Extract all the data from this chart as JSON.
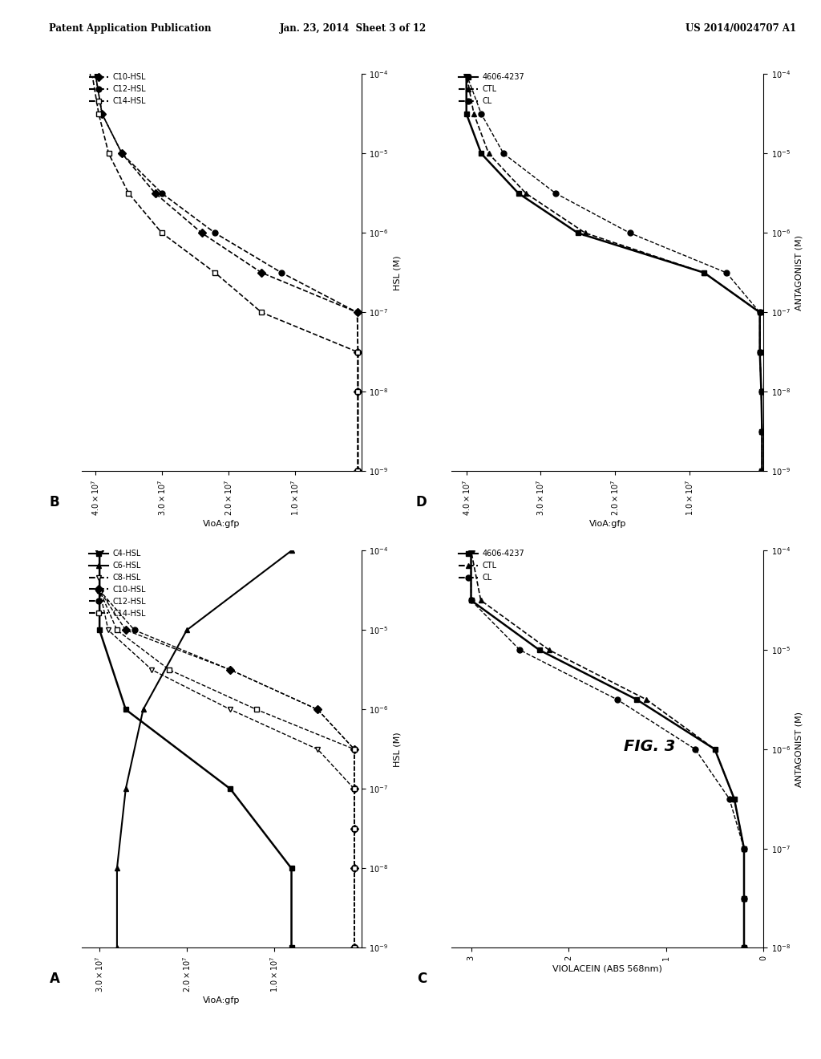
{
  "background": "#ffffff",
  "header_left": "Patent Application Publication",
  "header_center": "Jan. 23, 2014  Sheet 3 of 12",
  "header_right": "US 2014/0024707 A1",
  "fig_label": "FIG. 3",
  "panel_B": {
    "label": "B",
    "response_label": "VioA:gfp",
    "conc_label": "HSL (M)",
    "conc_lim": [
      -9,
      -4
    ],
    "response_lim": [
      0,
      42000000.0
    ],
    "response_ticks": [
      10000000.0,
      20000000.0,
      30000000.0,
      40000000.0
    ],
    "series": [
      {
        "label": "C10-HSL",
        "marker": "D",
        "filled": true,
        "linestyle": "--",
        "lw": 1.2,
        "x": [
          -9,
          -8,
          -7.5,
          -7,
          -6.5,
          -6,
          -5.5,
          -5,
          -4.5,
          -4
        ],
        "y": [
          500000.0,
          500000.0,
          500000.0,
          600000.0,
          15000000.0,
          24000000.0,
          31000000.0,
          36000000.0,
          39000000.0,
          40000000.0
        ]
      },
      {
        "label": "C12-HSL",
        "marker": "o",
        "filled": true,
        "linestyle": "--",
        "lw": 1.2,
        "x": [
          -9,
          -8,
          -7.5,
          -7,
          -6.5,
          -6,
          -5.5,
          -5,
          -4.5,
          -4
        ],
        "y": [
          500000.0,
          500000.0,
          500000.0,
          600000.0,
          12000000.0,
          22000000.0,
          30000000.0,
          36000000.0,
          39000000.0,
          40000000.0
        ]
      },
      {
        "label": "C14-HSL",
        "marker": "s",
        "filled": false,
        "linestyle": "--",
        "lw": 1.2,
        "x": [
          -9,
          -8,
          -7.5,
          -7,
          -6.5,
          -6,
          -5.5,
          -5,
          -4.5,
          -4
        ],
        "y": [
          500000.0,
          500000.0,
          500000.0,
          15000000.0,
          22000000.0,
          30000000.0,
          35000000.0,
          38000000.0,
          39500000.0,
          40500000.0
        ]
      }
    ],
    "legend": [
      {
        "label": "C10-HSL",
        "marker": "D",
        "filled": true,
        "linestyle": "--"
      },
      {
        "label": "C12-HSL",
        "marker": "o",
        "filled": true,
        "linestyle": "--"
      },
      {
        "label": "C14-HSL",
        "marker": "s",
        "filled": false,
        "linestyle": "--"
      }
    ]
  },
  "panel_A": {
    "label": "A",
    "response_label": "VioA:gfp",
    "conc_label": "HSL (M)",
    "conc_lim": [
      -9,
      -4
    ],
    "response_lim": [
      0,
      32000000.0
    ],
    "response_ticks": [
      10000000.0,
      20000000.0,
      30000000.0
    ],
    "series": [
      {
        "label": "C4-HSL",
        "marker": "s",
        "filled": true,
        "linestyle": "-",
        "lw": 1.8,
        "x": [
          -9,
          -8,
          -7,
          -6,
          -5,
          -4
        ],
        "y": [
          8000000.0,
          8000000.0,
          15000000.0,
          27000000.0,
          30000000.0,
          30000000.0
        ]
      },
      {
        "label": "C6-HSL",
        "marker": "^",
        "filled": true,
        "linestyle": "-",
        "lw": 1.5,
        "x": [
          -9,
          -8,
          -7,
          -6,
          -5,
          -4
        ],
        "y": [
          28000000.0,
          28000000.0,
          27000000.0,
          25000000.0,
          20000000.0,
          8000000.0
        ]
      },
      {
        "label": "C8-HSL",
        "marker": "v",
        "filled": false,
        "linestyle": "--",
        "lw": 1.0,
        "x": [
          -9,
          -8,
          -7.5,
          -7,
          -6.5,
          -6,
          -5.5,
          -5,
          -4.5,
          -4
        ],
        "y": [
          800000.0,
          800000.0,
          800000.0,
          800000.0,
          5000000.0,
          15000000.0,
          24000000.0,
          29000000.0,
          30000000.0,
          30000000.0
        ]
      },
      {
        "label": "C10-HSL",
        "marker": "D",
        "filled": true,
        "linestyle": "--",
        "lw": 1.0,
        "x": [
          -9,
          -8,
          -7.5,
          -7,
          -6.5,
          -6,
          -5.5,
          -5,
          -4.5,
          -4
        ],
        "y": [
          800000.0,
          800000.0,
          800000.0,
          800000.0,
          800000.0,
          5000000.0,
          15000000.0,
          27000000.0,
          30000000.0,
          30000000.0
        ]
      },
      {
        "label": "C12-HSL",
        "marker": "o",
        "filled": true,
        "linestyle": "--",
        "lw": 1.0,
        "x": [
          -9,
          -8,
          -7.5,
          -7,
          -6.5,
          -6,
          -5.5,
          -5,
          -4.5,
          -4
        ],
        "y": [
          800000.0,
          800000.0,
          800000.0,
          800000.0,
          800000.0,
          5000000.0,
          15000000.0,
          26000000.0,
          30000000.0,
          30000000.0
        ]
      },
      {
        "label": "C14-HSL",
        "marker": "s",
        "filled": false,
        "linestyle": "--",
        "lw": 1.0,
        "x": [
          -9,
          -8,
          -7.5,
          -7,
          -6.5,
          -6,
          -5.5,
          -5,
          -4.5,
          -4
        ],
        "y": [
          800000.0,
          800000.0,
          800000.0,
          800000.0,
          800000.0,
          12000000.0,
          22000000.0,
          28000000.0,
          30000000.0,
          30000000.0
        ]
      }
    ],
    "legend": [
      {
        "label": "C4-HSL",
        "marker": "s",
        "filled": true,
        "linestyle": "-"
      },
      {
        "label": "C6-HSL",
        "marker": "^",
        "filled": true,
        "linestyle": "-"
      },
      {
        "label": "C8-HSL",
        "marker": "v",
        "filled": false,
        "linestyle": "--"
      },
      {
        "label": "C10-HSL",
        "marker": "D",
        "filled": true,
        "linestyle": "--"
      },
      {
        "label": "C12-HSL",
        "marker": "o",
        "filled": true,
        "linestyle": "--"
      },
      {
        "label": "C14-HSL",
        "marker": "s",
        "filled": false,
        "linestyle": "--"
      }
    ]
  },
  "panel_D": {
    "label": "D",
    "response_label": "VioA:gfp",
    "conc_label": "ANTAGONIST (M)",
    "conc_lim": [
      -9,
      -4
    ],
    "response_lim": [
      0,
      42000000.0
    ],
    "response_ticks": [
      10000000.0,
      20000000.0,
      30000000.0,
      40000000.0
    ],
    "series": [
      {
        "label": "4606-4237",
        "marker": "s",
        "filled": true,
        "linestyle": "-",
        "lw": 1.8,
        "x": [
          -9,
          -8.5,
          -8,
          -7.5,
          -7,
          -6.5,
          -6,
          -5.5,
          -5,
          -4.5,
          -4
        ],
        "y": [
          200000.0,
          200000.0,
          300000.0,
          500000.0,
          500000.0,
          8000000.0,
          25000000.0,
          33000000.0,
          38000000.0,
          40000000.0,
          40000000.0
        ]
      },
      {
        "label": "CTL",
        "marker": "^",
        "filled": true,
        "linestyle": "--",
        "lw": 1.2,
        "x": [
          -9,
          -8.5,
          -8,
          -7.5,
          -7,
          -6.5,
          -6,
          -5.5,
          -5,
          -4.5,
          -4
        ],
        "y": [
          200000.0,
          200000.0,
          300000.0,
          500000.0,
          500000.0,
          8000000.0,
          24000000.0,
          32000000.0,
          37000000.0,
          39000000.0,
          40000000.0
        ]
      },
      {
        "label": "CL",
        "marker": "o",
        "filled": true,
        "linestyle": "--",
        "lw": 1.0,
        "x": [
          -9,
          -8.5,
          -8,
          -7.5,
          -7,
          -6.5,
          -6,
          -5.5,
          -5,
          -4.5,
          -4
        ],
        "y": [
          200000.0,
          200000.0,
          300000.0,
          500000.0,
          500000.0,
          5000000.0,
          18000000.0,
          28000000.0,
          35000000.0,
          38000000.0,
          40000000.0
        ]
      }
    ],
    "legend": [
      {
        "label": "4606-4237",
        "marker": "s",
        "filled": true,
        "linestyle": "-"
      },
      {
        "label": "CTL",
        "marker": "^",
        "filled": true,
        "linestyle": "--"
      },
      {
        "label": "CL",
        "marker": "o",
        "filled": true,
        "linestyle": "--"
      }
    ]
  },
  "panel_C": {
    "label": "C",
    "response_label": "VIOLACEIN (ABS 568nm)",
    "conc_label": "ANTAGONIST (M)",
    "conc_lim": [
      -8,
      -4
    ],
    "response_lim": [
      0,
      3.2
    ],
    "response_ticks": [
      0,
      1,
      2,
      3
    ],
    "series": [
      {
        "label": "4606-4237",
        "marker": "s",
        "filled": true,
        "linestyle": "-",
        "lw": 1.8,
        "x": [
          -8,
          -7.5,
          -7,
          -6.5,
          -6,
          -5.5,
          -5,
          -4.5,
          -4
        ],
        "y": [
          0.2,
          0.2,
          0.2,
          0.3,
          0.5,
          1.3,
          2.3,
          3.0,
          3.0
        ]
      },
      {
        "label": "CTL",
        "marker": "^",
        "filled": true,
        "linestyle": "--",
        "lw": 1.2,
        "x": [
          -8,
          -7.5,
          -7,
          -6.5,
          -6,
          -5.5,
          -5,
          -4.5,
          -4
        ],
        "y": [
          0.2,
          0.2,
          0.2,
          0.3,
          0.5,
          1.2,
          2.2,
          2.9,
          3.0
        ]
      },
      {
        "label": "CL",
        "marker": "o",
        "filled": true,
        "linestyle": "--",
        "lw": 1.0,
        "x": [
          -8,
          -7.5,
          -7,
          -6.5,
          -6,
          -5.5,
          -5,
          -4.5,
          -4
        ],
        "y": [
          0.2,
          0.2,
          0.2,
          0.35,
          0.7,
          1.5,
          2.5,
          3.0,
          3.0
        ]
      }
    ],
    "legend": [
      {
        "label": "4606-4237",
        "marker": "s",
        "filled": true,
        "linestyle": "-"
      },
      {
        "label": "CTL",
        "marker": "^",
        "filled": true,
        "linestyle": "--"
      },
      {
        "label": "CL",
        "marker": "o",
        "filled": true,
        "linestyle": "--"
      }
    ]
  }
}
